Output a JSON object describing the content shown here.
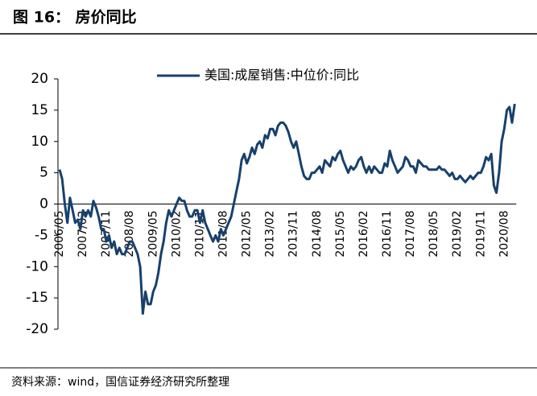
{
  "header": {
    "title": "图 16： 房价同比"
  },
  "chart_data": {
    "type": "line",
    "categories": [
      "2006/05",
      null,
      null,
      null,
      null,
      null,
      null,
      null,
      null,
      "2007/02",
      null,
      null,
      null,
      null,
      null,
      null,
      null,
      null,
      "2007/11",
      null,
      null,
      null,
      null,
      null,
      null,
      null,
      null,
      "2008/08",
      null,
      null,
      null,
      null,
      null,
      null,
      null,
      null,
      "2009/05",
      null,
      null,
      null,
      null,
      null,
      null,
      null,
      null,
      "2010/02",
      null,
      null,
      null,
      null,
      null,
      null,
      null,
      null,
      "2010/11",
      null,
      null,
      null,
      null,
      null,
      null,
      null,
      null,
      "2011/08",
      null,
      null,
      null,
      null,
      null,
      null,
      null,
      null,
      "2012/05",
      null,
      null,
      null,
      null,
      null,
      null,
      null,
      null,
      "2013/02",
      null,
      null,
      null,
      null,
      null,
      null,
      null,
      null,
      "2013/11",
      null,
      null,
      null,
      null,
      null,
      null,
      null,
      null,
      "2014/08",
      null,
      null,
      null,
      null,
      null,
      null,
      null,
      null,
      "2015/05",
      null,
      null,
      null,
      null,
      null,
      null,
      null,
      null,
      "2016/02",
      null,
      null,
      null,
      null,
      null,
      null,
      null,
      null,
      "2016/11",
      null,
      null,
      null,
      null,
      null,
      null,
      null,
      null,
      "2017/08",
      null,
      null,
      null,
      null,
      null,
      null,
      null,
      null,
      "2018/05",
      null,
      null,
      null,
      null,
      null,
      null,
      null,
      null,
      "2019/02",
      null,
      null,
      null,
      null,
      null,
      null,
      null,
      null,
      "2019/11",
      null,
      null,
      null,
      null,
      null,
      null,
      null,
      null,
      "2020/08",
      null,
      null,
      null,
      null
    ],
    "series": [
      {
        "name": "美国:成屋销售:中位价:同比",
        "color": "#17406d",
        "values": [
          5.5,
          4,
          0,
          -3,
          1,
          -1,
          -3,
          -2.5,
          -4,
          -1,
          -2,
          -1,
          -2,
          0.5,
          -0.5,
          -2,
          -4,
          -4,
          -6,
          -5,
          -7,
          -6,
          -8,
          -7,
          -8,
          -8,
          -7,
          -6,
          -6,
          -7,
          -8,
          -10,
          -17.5,
          -14,
          -16,
          -16,
          -14,
          -13,
          -11,
          -8,
          -6,
          -3,
          -1,
          -2,
          -1,
          0,
          1,
          0.5,
          0.5,
          -1,
          -2,
          -2,
          -1,
          -1,
          -3,
          -1,
          -3,
          -4,
          -5,
          -6,
          -5,
          -6,
          -4,
          -5,
          -4,
          -3,
          -2,
          0,
          2,
          4,
          7,
          8,
          6.5,
          7.5,
          9,
          8,
          9.5,
          10,
          9,
          11,
          10.5,
          12,
          12,
          11,
          12.5,
          13,
          13,
          12.5,
          11.5,
          10,
          9,
          10,
          8,
          6,
          4.5,
          4,
          4,
          5,
          5,
          5.5,
          6,
          5,
          7,
          6.5,
          6,
          7.5,
          7,
          8,
          8.5,
          7,
          6,
          5,
          6,
          5.5,
          6,
          7,
          7.5,
          6,
          5,
          6,
          5,
          6,
          5.5,
          5,
          5,
          6.5,
          6,
          8.5,
          7,
          6,
          5,
          5.5,
          6,
          7.5,
          7,
          6,
          6,
          5,
          7,
          6.5,
          6,
          6,
          5.5,
          5.5,
          5.5,
          5.5,
          6,
          5.5,
          5.5,
          5,
          4.5,
          5,
          4,
          4,
          4.5,
          4,
          3.5,
          4,
          4.5,
          4,
          4.5,
          5,
          5,
          6,
          7.5,
          7,
          8,
          3,
          1.8,
          5,
          10,
          12,
          15,
          15.5,
          13,
          16
        ]
      }
    ],
    "ylim": [
      -20,
      20
    ],
    "yticks": [
      -20,
      -15,
      -10,
      -5,
      0,
      5,
      10,
      15,
      20
    ]
  },
  "footer": {
    "source": "资料来源：wind，国信证券经济研究所整理"
  }
}
